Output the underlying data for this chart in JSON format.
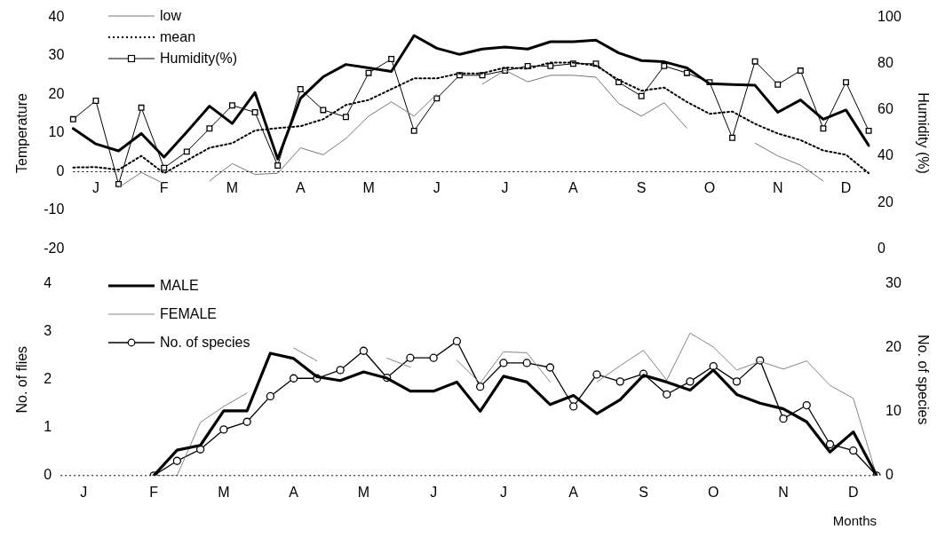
{
  "chart_data": [
    {
      "type": "line",
      "ylabel": "Temperature",
      "y2label": "Humidity (%)",
      "categories": [
        null,
        "J",
        null,
        null,
        "F",
        null,
        null,
        "M",
        null,
        null,
        "A",
        null,
        null,
        "M",
        null,
        null,
        "J",
        null,
        null,
        "J",
        null,
        null,
        "A",
        null,
        null,
        "S",
        null,
        null,
        "O",
        null,
        null,
        "N",
        null,
        null,
        "D",
        null
      ],
      "ylim": [
        -20,
        40
      ],
      "yticks": [
        -20,
        -10,
        0,
        10,
        20,
        30,
        40
      ],
      "y2lim": [
        0,
        100
      ],
      "y2ticks": [
        0,
        20,
        40,
        60,
        80,
        100
      ],
      "legend": "top left",
      "ref_lines": [
        {
          "axis": "y",
          "value": 0,
          "line_style": "dotted",
          "color": "#000000"
        }
      ],
      "series": [
        {
          "color": "#000000",
          "marker": "none",
          "line_style": "solid",
          "values": [
            11.2,
            7.2,
            5.4,
            9.9,
            3.8,
            10.3,
            17,
            12.5,
            20.5,
            3.3,
            19,
            24.6,
            27.8,
            26.9,
            26,
            35.3,
            32,
            30.4,
            31.8,
            32.3,
            31.8,
            33.7,
            33.7,
            34.1,
            30.8,
            28.8,
            28.5,
            26.9,
            22.8,
            22.6,
            22.4,
            15.4,
            18.6,
            13.6,
            16,
            6.8
          ]
        },
        {
          "name": "low",
          "color": "#777777",
          "marker": "none",
          "line_style": "solid",
          "values": [
            null,
            null,
            -4.1,
            -0.2,
            -3.1,
            null,
            -2.4,
            2.1,
            -0.7,
            -0.4,
            6.2,
            4.4,
            8.6,
            14.4,
            18.1,
            14.4,
            20.1,
            null,
            22.7,
            26.3,
            23.3,
            25,
            25,
            24.5,
            17.7,
            14.4,
            17.9,
            11.3,
            null,
            null,
            7.4,
            4.1,
            1.7,
            -2.4,
            null,
            null
          ]
        },
        {
          "name": "mean",
          "color": "#000000",
          "marker": "none",
          "line_style": "dotted",
          "values": [
            1.1,
            1.2,
            0.5,
            4.1,
            -0.4,
            2.9,
            6.2,
            7.4,
            10.7,
            11.3,
            11.8,
            13.6,
            17.3,
            18.6,
            21.4,
            24.2,
            24.2,
            25.5,
            25.5,
            27,
            26.7,
            28.3,
            28.3,
            27.5,
            23.8,
            21,
            21.8,
            18.1,
            15,
            15.6,
            12.4,
            9.9,
            8.2,
            5.5,
            4.4,
            -0.4
          ]
        },
        {
          "name": "Humidity(%)",
          "color": "#000000",
          "marker": "square",
          "line_style": "solid",
          "axis": "y2",
          "values": [
            56,
            64,
            28,
            61,
            35,
            42,
            52,
            62,
            59,
            36,
            69,
            60,
            57,
            76,
            82,
            51,
            65,
            75,
            75,
            77,
            79,
            79,
            80,
            80,
            72,
            66,
            79,
            76,
            72,
            48,
            81,
            71,
            77,
            52,
            72,
            51
          ]
        }
      ]
    },
    {
      "type": "line",
      "ylabel": "No. of flies",
      "y2label": "No. of species",
      "xlabel": "Months",
      "categories": [
        null,
        "J",
        null,
        null,
        "F",
        null,
        null,
        "M",
        null,
        null,
        "A",
        null,
        null,
        "M",
        null,
        null,
        "J",
        null,
        null,
        "J",
        null,
        null,
        "A",
        null,
        null,
        "S",
        null,
        null,
        "O",
        null,
        null,
        "N",
        null,
        null,
        "D",
        null
      ],
      "ylim": [
        0,
        4
      ],
      "yticks": [
        0,
        1,
        2,
        3,
        4
      ],
      "y2lim": [
        0,
        30
      ],
      "y2ticks": [
        0,
        10,
        20,
        30
      ],
      "legend": "top left",
      "ref_lines": [
        {
          "axis": "y",
          "value": 0,
          "line_style": "dotted",
          "color": "#000000"
        }
      ],
      "series": [
        {
          "name": "MALE",
          "color": "#000000",
          "marker": "none",
          "line_style": "solid",
          "values": [
            null,
            null,
            null,
            null,
            0,
            0.53,
            0.63,
            1.35,
            1.35,
            2.55,
            2.44,
            2.06,
            1.98,
            2.16,
            2.03,
            1.76,
            1.76,
            1.95,
            1.34,
            2.07,
            1.95,
            1.48,
            1.67,
            1.29,
            1.58,
            2.09,
            1.95,
            1.78,
            2.2,
            1.69,
            1.51,
            1.39,
            1.12,
            0.49,
            0.91,
            0
          ]
        },
        {
          "name": "FEMALE",
          "color": "#777777",
          "marker": "none",
          "line_style": "solid",
          "values": [
            null,
            null,
            null,
            null,
            0,
            0,
            1.11,
            1.44,
            1.72,
            null,
            2.66,
            2.39,
            null,
            null,
            2.45,
            2.26,
            null,
            2.4,
            1.93,
            2.58,
            2.56,
            1.95,
            null,
            1.95,
            2.29,
            2.61,
            1.99,
            2.97,
            2.68,
            2.2,
            2.38,
            2.22,
            2.39,
            1.88,
            1.61,
            0
          ]
        },
        {
          "name": "No. of species",
          "color": "#000000",
          "marker": "circle",
          "line_style": "solid",
          "axis": "y2",
          "values": [
            null,
            null,
            null,
            null,
            0,
            2.3,
            4.1,
            7.2,
            8.4,
            12.4,
            15.2,
            15.2,
            16.5,
            19.5,
            15.3,
            18.4,
            18.4,
            21,
            13.9,
            17.6,
            17.6,
            16.9,
            10.8,
            15.8,
            14.7,
            15.9,
            12.7,
            14.7,
            17.1,
            14.7,
            18,
            8.9,
            11,
            4.9,
            3.9,
            0
          ]
        }
      ]
    }
  ]
}
